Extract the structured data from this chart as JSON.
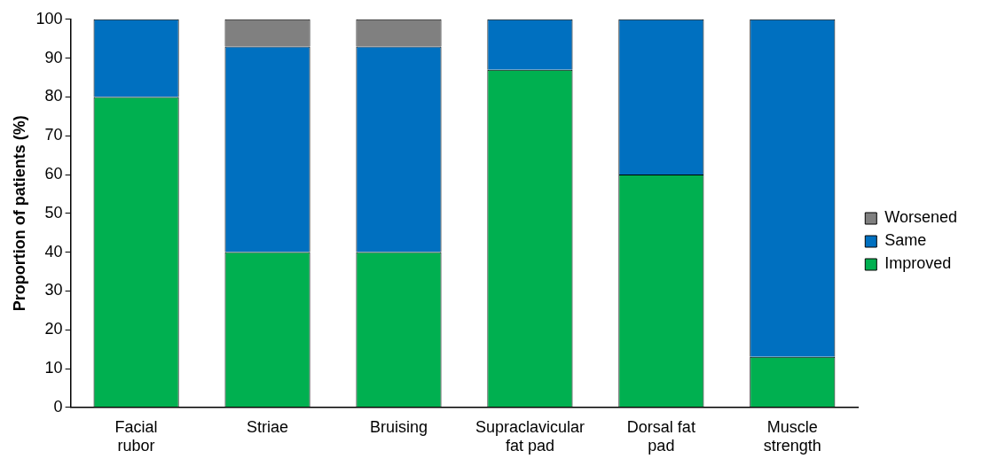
{
  "chart_data": {
    "type": "bar",
    "ylabel": "Proportion of patients (%)",
    "categories": [
      "Facial rubor",
      "Striae",
      "Bruising",
      "Supraclavicular fat pad",
      "Dorsal fat pad",
      "Muscle strength"
    ],
    "stacked": true,
    "series": [
      {
        "name": "Improved",
        "color": "#00b050",
        "values": [
          80,
          40,
          40,
          87,
          60,
          13
        ]
      },
      {
        "name": "Same",
        "color": "#0070c0",
        "values": [
          20,
          53,
          53,
          13,
          40,
          87
        ]
      },
      {
        "name": "Worsened",
        "color": "#808080",
        "values": [
          0,
          7,
          7,
          0,
          0,
          0
        ]
      }
    ],
    "ylim": [
      0,
      100
    ],
    "yticks": [
      0,
      10,
      20,
      30,
      40,
      50,
      60,
      70,
      80,
      90,
      100
    ],
    "grid": false,
    "legend": "right"
  }
}
